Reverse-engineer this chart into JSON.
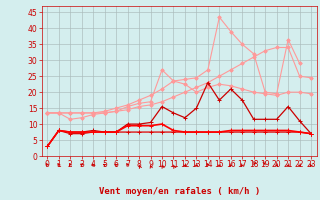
{
  "x": [
    0,
    1,
    2,
    3,
    4,
    5,
    6,
    7,
    8,
    9,
    10,
    11,
    12,
    13,
    14,
    15,
    16,
    17,
    18,
    19,
    20,
    21,
    22,
    23
  ],
  "series": [
    {
      "name": "light_pink_trend1",
      "color": "#FF9999",
      "linewidth": 0.8,
      "marker": "D",
      "markersize": 1.8,
      "y": [
        13.5,
        13.5,
        13.5,
        13.5,
        13.5,
        13.5,
        14.0,
        14.5,
        15.5,
        16.0,
        17.0,
        18.5,
        20.0,
        21.5,
        23.0,
        25.0,
        27.0,
        29.0,
        31.0,
        33.0,
        34.0,
        34.0,
        25.0,
        24.5
      ]
    },
    {
      "name": "light_pink_peak",
      "color": "#FF9999",
      "linewidth": 0.8,
      "marker": "D",
      "markersize": 1.8,
      "y": [
        13.5,
        13.5,
        13.5,
        13.5,
        13.5,
        14.0,
        15.0,
        16.0,
        17.5,
        19.0,
        21.0,
        23.5,
        24.0,
        24.5,
        27.0,
        43.5,
        39.0,
        35.0,
        32.0,
        20.0,
        19.5,
        36.5,
        29.0,
        null
      ]
    },
    {
      "name": "light_pink_mid",
      "color": "#FF9999",
      "linewidth": 0.8,
      "marker": "D",
      "markersize": 1.8,
      "y": [
        13.5,
        13.5,
        11.5,
        12.0,
        13.0,
        13.5,
        14.0,
        15.5,
        16.5,
        17.0,
        27.0,
        23.5,
        22.5,
        20.0,
        21.5,
        22.5,
        22.0,
        21.0,
        20.0,
        19.5,
        19.0,
        20.0,
        20.0,
        19.5
      ]
    },
    {
      "name": "dark_red_flat",
      "color": "#DD0000",
      "linewidth": 0.9,
      "marker": "+",
      "markersize": 3.0,
      "y": [
        3.0,
        8.0,
        7.0,
        7.0,
        7.5,
        7.5,
        7.5,
        7.5,
        7.5,
        7.5,
        7.5,
        7.5,
        7.5,
        7.5,
        7.5,
        7.5,
        7.5,
        7.5,
        7.5,
        7.5,
        7.5,
        7.5,
        7.5,
        7.0
      ]
    },
    {
      "name": "dark_red_spiky",
      "color": "#CC0000",
      "linewidth": 0.9,
      "marker": "+",
      "markersize": 3.0,
      "y": [
        3.0,
        8.0,
        7.5,
        7.5,
        8.0,
        7.5,
        7.5,
        10.0,
        10.0,
        10.5,
        15.5,
        13.5,
        12.0,
        15.0,
        23.0,
        17.5,
        21.0,
        17.5,
        11.5,
        11.5,
        11.5,
        15.5,
        11.0,
        7.0
      ]
    },
    {
      "name": "bright_red_base",
      "color": "#FF0000",
      "linewidth": 1.2,
      "marker": "+",
      "markersize": 2.5,
      "y": [
        3.0,
        8.0,
        7.5,
        7.5,
        7.5,
        7.5,
        7.5,
        9.5,
        9.5,
        9.5,
        10.0,
        8.0,
        7.5,
        7.5,
        7.5,
        7.5,
        8.0,
        8.0,
        8.0,
        8.0,
        8.0,
        8.0,
        7.5,
        7.0
      ]
    }
  ],
  "arrow_angles": [
    225,
    225,
    225,
    240,
    240,
    250,
    250,
    225,
    215,
    200,
    210,
    215,
    45,
    60,
    225,
    45,
    315,
    315,
    330,
    30,
    45,
    45,
    45,
    315
  ],
  "xlim": [
    -0.5,
    23.5
  ],
  "ylim": [
    0,
    47
  ],
  "yticks": [
    0,
    5,
    10,
    15,
    20,
    25,
    30,
    35,
    40,
    45
  ],
  "xticks": [
    0,
    1,
    2,
    3,
    4,
    5,
    6,
    7,
    8,
    9,
    10,
    11,
    12,
    13,
    14,
    15,
    16,
    17,
    18,
    19,
    20,
    21,
    22,
    23
  ],
  "xlabel": "Vent moyen/en rafales ( km/h )",
  "background_color": "#D4EEEE",
  "grid_color": "#AABBBB",
  "xlabel_color": "#CC0000",
  "xlabel_fontsize": 6.5,
  "tick_fontsize": 5.5,
  "tick_color": "#CC0000",
  "arrow_color": "#CC0000"
}
